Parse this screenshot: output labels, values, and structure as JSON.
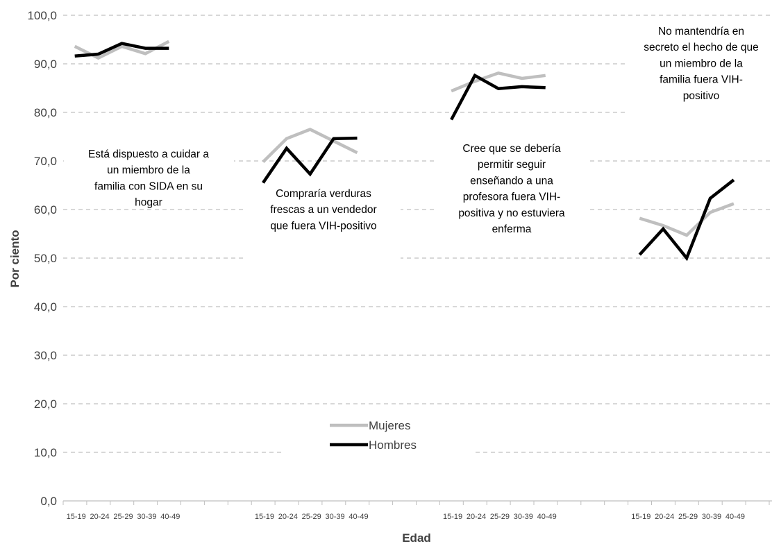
{
  "chart_data": {
    "type": "line",
    "xlabel": "Edad",
    "ylabel": "Por ciento",
    "ylim": [
      0,
      100
    ],
    "yticks": [
      "0,0",
      "10,0",
      "20,0",
      "30,0",
      "40,0",
      "50,0",
      "60,0",
      "70,0",
      "80,0",
      "90,0",
      "100,0"
    ],
    "grid": true,
    "legend": "center-bottom",
    "colors": {
      "Mujeres": "#bfbfbf",
      "Hombres": "#000000"
    },
    "legend_entries": [
      "Mujeres",
      "Hombres"
    ],
    "panels": [
      {
        "annotation": [
          "Está dispuesto a cuidar a",
          "un miembro de la",
          "familia con SIDA en su",
          "hogar"
        ],
        "categories": [
          "15-19",
          "20-24",
          "25-29",
          "30-39",
          "40-49"
        ],
        "series": [
          {
            "name": "Mujeres",
            "values": [
              93.6,
              91.2,
              93.6,
              92.1,
              94.6
            ]
          },
          {
            "name": "Hombres",
            "values": [
              91.6,
              92.0,
              94.2,
              93.2,
              93.2
            ]
          }
        ]
      },
      {
        "annotation": [
          "Compraría verduras",
          "frescas a un vendedor",
          "que fuera VIH-positivo"
        ],
        "categories": [
          "15-19",
          "20-24",
          "25-29",
          "30-39",
          "40-49"
        ],
        "series": [
          {
            "name": "Mujeres",
            "values": [
              69.8,
              74.6,
              76.5,
              74.1,
              71.7
            ]
          },
          {
            "name": "Hombres",
            "values": [
              65.5,
              72.6,
              67.3,
              74.6,
              74.7
            ]
          }
        ]
      },
      {
        "annotation": [
          "Cree que se debería",
          "permitir seguir",
          "enseñando a una",
          "profesora fuera VIH-",
          "positiva y no estuviera",
          "enferma"
        ],
        "categories": [
          "15-19",
          "20-24",
          "25-29",
          "30-39",
          "40-49"
        ],
        "series": [
          {
            "name": "Mujeres",
            "values": [
              84.4,
              86.4,
              88.1,
              87.0,
              87.6
            ]
          },
          {
            "name": "Hombres",
            "values": [
              78.5,
              87.6,
              84.9,
              85.3,
              85.1
            ]
          }
        ]
      },
      {
        "annotation": [
          "No mantendría en",
          "secreto el hecho de que",
          "un miembro de la",
          "familia fuera VIH-",
          "positivo"
        ],
        "categories": [
          "15-19",
          "20-24",
          "25-29",
          "30-39",
          "40-49"
        ],
        "series": [
          {
            "name": "Mujeres",
            "values": [
              58.2,
              56.7,
              54.7,
              59.4,
              61.2
            ]
          },
          {
            "name": "Hombres",
            "values": [
              50.7,
              56.0,
              50.0,
              62.3,
              66.1
            ]
          }
        ]
      }
    ]
  }
}
